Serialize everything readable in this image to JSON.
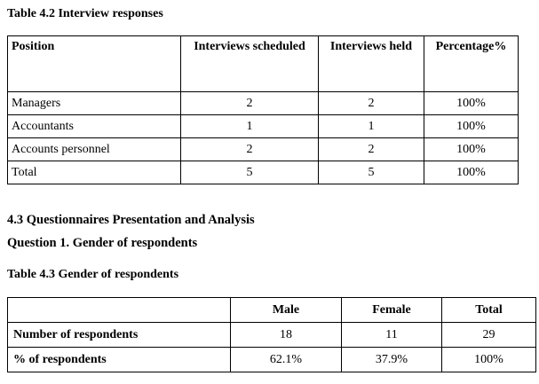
{
  "table42": {
    "caption": "Table 4.2 Interview responses",
    "headers": [
      "Position",
      "Interviews scheduled",
      "Interviews held",
      "Percentage%"
    ],
    "rows": [
      [
        "Managers",
        "2",
        "2",
        "100%"
      ],
      [
        "Accountants",
        "1",
        "1",
        "100%"
      ],
      [
        "Accounts personnel",
        "2",
        "2",
        "100%"
      ],
      [
        "Total",
        "5",
        "5",
        "100%"
      ]
    ]
  },
  "section": {
    "heading": "4.3 Questionnaires Presentation and Analysis",
    "question": "Question 1. Gender of respondents"
  },
  "table43": {
    "caption": "Table 4.3 Gender of respondents",
    "headers": [
      "",
      "Male",
      "Female",
      "Total"
    ],
    "rows": [
      [
        "Number of respondents",
        "18",
        "11",
        "29"
      ],
      [
        "% of respondents",
        "62.1%",
        "37.9%",
        "100%"
      ]
    ]
  }
}
